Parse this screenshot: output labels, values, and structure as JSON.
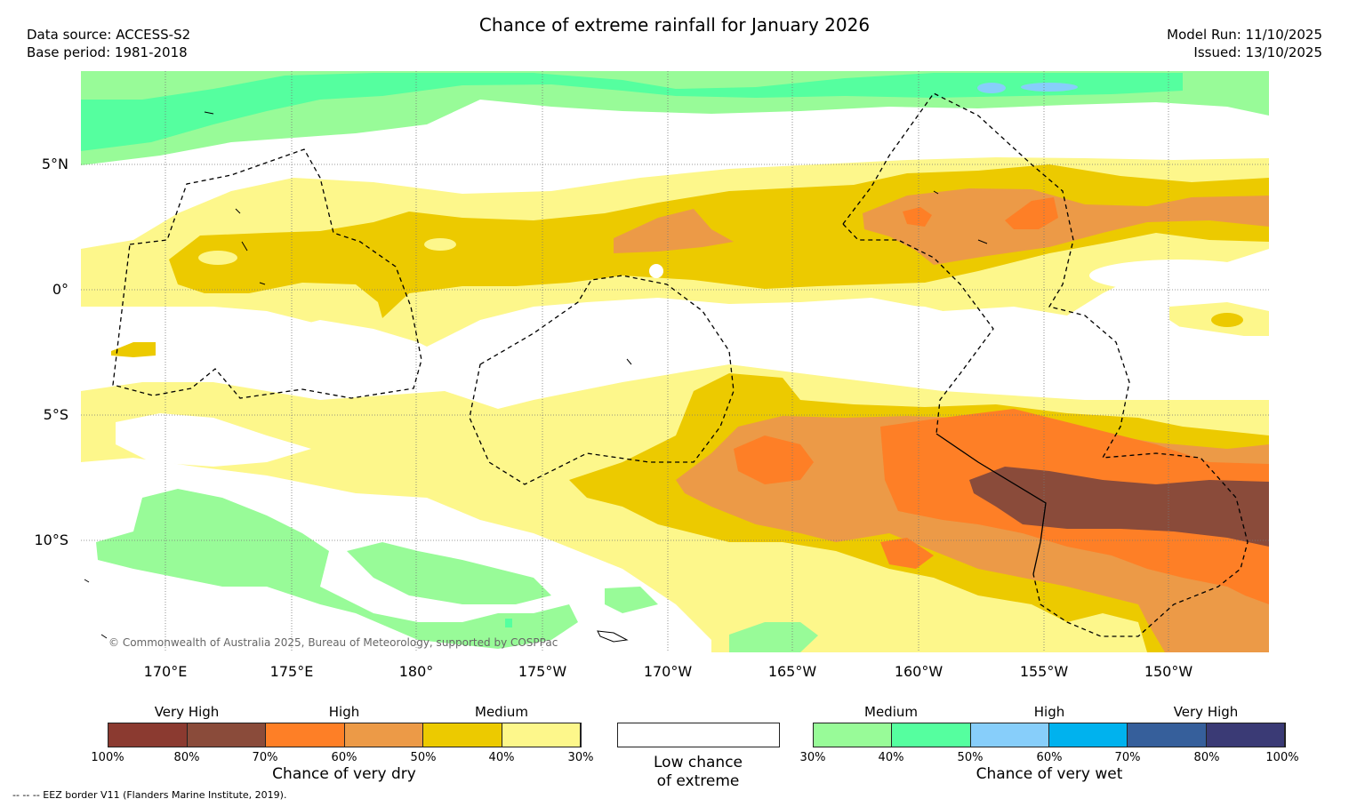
{
  "header": {
    "title": "Chance of extreme rainfall for January 2026",
    "data_source": "Data source: ACCESS-S2",
    "base_period": "Base period: 1981-2018",
    "model_run": "Model Run: 11/10/2025",
    "issued": "Issued: 13/10/2025"
  },
  "map": {
    "lat_labels": [
      "5°N",
      "0°",
      "5°S",
      "10°S"
    ],
    "lon_labels": [
      "170°E",
      "175°E",
      "180°",
      "175°W",
      "170°W",
      "165°W",
      "160°W",
      "155°W",
      "150°W"
    ],
    "copyright": "© Commonwealth of Australia 2025, Bureau of Meteorology, supported by COSPPac",
    "colors": {
      "dry_100_90": "#8b3a30",
      "dry_90_80": "#8a4b3a",
      "dry_70_60": "#fe7f26",
      "dry_60_50": "#ec9a47",
      "dry_50_40": "#ecca00",
      "dry_40_30": "#fdf78b",
      "wet_30_40": "#98fb98",
      "wet_40_50": "#55ff9f",
      "wet_50_60": "#87cefa"
    }
  },
  "legend": {
    "dry": {
      "headers": [
        "Very High",
        "High",
        "Medium"
      ],
      "ticks": [
        "100%",
        "80%",
        "70%",
        "60%",
        "50%",
        "40%",
        "30%"
      ],
      "caption": "Chance of very dry",
      "colors": [
        "#8b3a30",
        "#8a4b3a",
        "#fe7f26",
        "#ec9a47",
        "#ecca00",
        "#fdf78b"
      ]
    },
    "low": {
      "caption_line1": "Low chance",
      "caption_line2": "of extreme"
    },
    "wet": {
      "headers": [
        "Medium",
        "High",
        "Very High"
      ],
      "ticks": [
        "30%",
        "40%",
        "50%",
        "60%",
        "70%",
        "80%",
        "100%"
      ],
      "caption": "Chance of very wet",
      "colors": [
        "#98fb98",
        "#55ff9f",
        "#87cefa",
        "#00b2ee",
        "#365f9b",
        "#3a3a75"
      ]
    }
  },
  "footnote": "--  --  -- EEZ border V11 (Flanders Marine Institute, 2019)."
}
